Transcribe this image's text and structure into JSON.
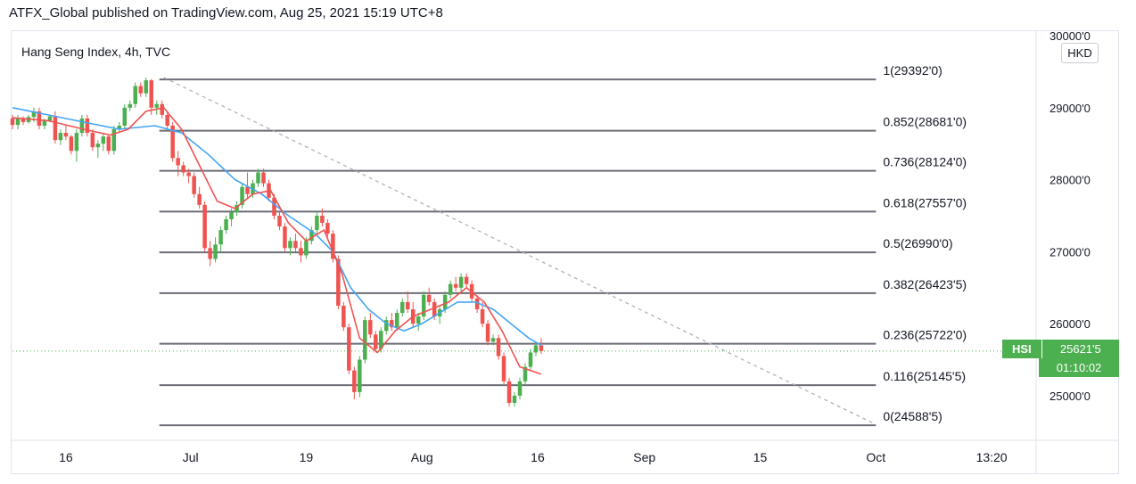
{
  "header": {
    "publisher": "ATFX_Global published on TradingView.com, Aug 25, 2021 15:19 UTC+8"
  },
  "legend": {
    "symbol_info": "Hang Seng Index, 4h, TVC"
  },
  "currency": "HKD",
  "price_tag": {
    "symbol": "HSI",
    "price": "25621'5",
    "countdown": "01:10:02"
  },
  "colors": {
    "up": "#4caf50",
    "down": "#ef5350",
    "ma_fast": "#ef5350",
    "ma_slow": "#42a5f5",
    "fib": "#6b6e76",
    "trend": "#b0b3ba"
  },
  "chart_data": {
    "type": "candlestick",
    "y_axis": {
      "labels": [
        "30000'0",
        "29000'0",
        "28000'0",
        "27000'0",
        "26000'0",
        "25000'0"
      ],
      "values": [
        30000,
        29000,
        28000,
        27000,
        26000,
        25000
      ],
      "range": [
        24380,
        30050
      ]
    },
    "x_axis": {
      "labels": [
        "16",
        "Jul",
        "19",
        "Aug",
        "16",
        "Sep",
        "15",
        "Oct",
        "13:20"
      ],
      "positions": [
        -14,
        0,
        13,
        26,
        39,
        51,
        64,
        77,
        90
      ],
      "range": [
        -20,
        95
      ]
    },
    "fib_levels": [
      {
        "ratio": "1",
        "price": 29392.0,
        "label": "1(29392'0)"
      },
      {
        "ratio": "0.852",
        "price": 28681.0,
        "label": "0.852(28681'0)"
      },
      {
        "ratio": "0.736",
        "price": 28124.0,
        "label": "0.736(28124'0)"
      },
      {
        "ratio": "0.618",
        "price": 27557.0,
        "label": "0.618(27557'0)"
      },
      {
        "ratio": "0.5",
        "price": 26990.0,
        "label": "0.5(26990'0)"
      },
      {
        "ratio": "0.382",
        "price": 26423.5,
        "label": "0.382(26423'5)"
      },
      {
        "ratio": "0.236",
        "price": 25722.0,
        "label": "0.236(25722'0)"
      },
      {
        "ratio": "0.116",
        "price": 25145.5,
        "label": "0.116(25145'5)"
      },
      {
        "ratio": "0",
        "price": 24588.5,
        "label": "0(24588'5)"
      }
    ],
    "fib_x_range": [
      -3.5,
      77
    ],
    "trendline": [
      [
        -3,
        29420
      ],
      [
        77,
        24600
      ]
    ],
    "candles": [
      [
        -20,
        28850,
        28900,
        28700,
        28760
      ],
      [
        -19.4,
        28760,
        28900,
        28700,
        28850
      ],
      [
        -18.8,
        28850,
        28880,
        28760,
        28800
      ],
      [
        -18.2,
        28800,
        28900,
        28780,
        28870
      ],
      [
        -17.6,
        28870,
        29000,
        28800,
        28950
      ],
      [
        -17,
        28950,
        29000,
        28700,
        28750
      ],
      [
        -16.4,
        28750,
        28850,
        28700,
        28820
      ],
      [
        -15.8,
        28820,
        28900,
        28800,
        28880
      ],
      [
        -15.2,
        28880,
        28950,
        28500,
        28550
      ],
      [
        -14.6,
        28550,
        28700,
        28480,
        28650
      ],
      [
        -14,
        28650,
        28750,
        28550,
        28600
      ],
      [
        -13.4,
        28600,
        28620,
        28350,
        28400
      ],
      [
        -12.8,
        28400,
        28700,
        28250,
        28650
      ],
      [
        -12.2,
        28650,
        28900,
        28600,
        28850
      ],
      [
        -11.6,
        28850,
        28900,
        28600,
        28650
      ],
      [
        -11,
        28650,
        28700,
        28400,
        28450
      ],
      [
        -10.4,
        28450,
        28550,
        28300,
        28500
      ],
      [
        -9.8,
        28500,
        28650,
        28400,
        28600
      ],
      [
        -9.2,
        28600,
        28620,
        28350,
        28400
      ],
      [
        -8.6,
        28400,
        28750,
        28350,
        28700
      ],
      [
        -8,
        28700,
        28800,
        28650,
        28750
      ],
      [
        -7.4,
        28750,
        29050,
        28700,
        29000
      ],
      [
        -6.8,
        29000,
        29100,
        28950,
        29050
      ],
      [
        -6.2,
        29050,
        29350,
        29000,
        29300
      ],
      [
        -5.6,
        29300,
        29350,
        29150,
        29200
      ],
      [
        -5,
        29200,
        29420,
        29150,
        29380
      ],
      [
        -4.4,
        29380,
        29400,
        28900,
        29000
      ],
      [
        -3.8,
        29000,
        29100,
        28900,
        29050
      ],
      [
        -3.2,
        29050,
        29100,
        28850,
        28900
      ],
      [
        -2.6,
        28900,
        28950,
        28700,
        28750
      ],
      [
        -2,
        28750,
        28800,
        28250,
        28300
      ],
      [
        -1.4,
        28300,
        28400,
        28050,
        28200
      ],
      [
        -0.8,
        28200,
        28250,
        28050,
        28100
      ],
      [
        -0.2,
        28100,
        28150,
        27950,
        28050
      ],
      [
        0.4,
        28050,
        28100,
        27750,
        27800
      ],
      [
        1,
        27800,
        27900,
        27600,
        27650
      ],
      [
        1.6,
        27650,
        27700,
        27000,
        27050
      ],
      [
        2.2,
        27050,
        27150,
        26800,
        26900
      ],
      [
        2.8,
        26900,
        27200,
        26850,
        27100
      ],
      [
        3.4,
        27100,
        27350,
        27000,
        27300
      ],
      [
        4,
        27300,
        27500,
        27250,
        27450
      ],
      [
        4.6,
        27450,
        27600,
        27350,
        27550
      ],
      [
        5.2,
        27550,
        27700,
        27500,
        27650
      ],
      [
        5.8,
        27650,
        27950,
        27600,
        27900
      ],
      [
        6.4,
        27900,
        28100,
        27750,
        27800
      ],
      [
        7,
        27800,
        28000,
        27750,
        27950
      ],
      [
        7.6,
        27950,
        28150,
        27900,
        28100
      ],
      [
        8.2,
        28100,
        28150,
        27900,
        27950
      ],
      [
        8.8,
        27950,
        28000,
        27700,
        27750
      ],
      [
        9.4,
        27750,
        27800,
        27450,
        27500
      ],
      [
        10,
        27500,
        27550,
        27300,
        27350
      ],
      [
        10.6,
        27350,
        27400,
        27000,
        27050
      ],
      [
        11.2,
        27050,
        27200,
        26950,
        27150
      ],
      [
        11.8,
        27150,
        27250,
        27000,
        27050
      ],
      [
        12.4,
        27050,
        27150,
        26850,
        26950
      ],
      [
        13,
        26950,
        27200,
        26900,
        27150
      ],
      [
        13.6,
        27150,
        27350,
        27100,
        27300
      ],
      [
        14.2,
        27300,
        27550,
        27250,
        27500
      ],
      [
        14.8,
        27500,
        27600,
        27350,
        27400
      ],
      [
        15.4,
        27400,
        27450,
        27200,
        27250
      ],
      [
        16,
        27250,
        27300,
        26850,
        26900
      ],
      [
        16.6,
        26900,
        26950,
        26200,
        26250
      ],
      [
        17.2,
        26250,
        26300,
        25900,
        25950
      ],
      [
        17.8,
        25950,
        26000,
        25300,
        25350
      ],
      [
        18.4,
        25350,
        25400,
        24950,
        25050
      ],
      [
        19,
        25050,
        25550,
        24980,
        25500
      ],
      [
        19.6,
        25500,
        26100,
        25450,
        26050
      ],
      [
        20.2,
        26050,
        26150,
        25800,
        25850
      ],
      [
        20.8,
        25850,
        25900,
        25600,
        25650
      ],
      [
        21.4,
        25650,
        25950,
        25600,
        25900
      ],
      [
        22,
        25900,
        26100,
        25850,
        26050
      ],
      [
        22.6,
        26050,
        26150,
        25900,
        25950
      ],
      [
        23.2,
        25950,
        26200,
        25900,
        26150
      ],
      [
        23.8,
        26150,
        26350,
        26100,
        26300
      ],
      [
        24.4,
        26300,
        26450,
        26150,
        26200
      ],
      [
        25,
        26200,
        26300,
        25950,
        26000
      ],
      [
        25.6,
        26000,
        26150,
        25900,
        26100
      ],
      [
        26.2,
        26100,
        26450,
        26050,
        26400
      ],
      [
        26.8,
        26400,
        26500,
        26250,
        26300
      ],
      [
        27.4,
        26300,
        26350,
        26050,
        26100
      ],
      [
        28,
        26100,
        26250,
        26000,
        26200
      ],
      [
        28.6,
        26200,
        26450,
        26150,
        26400
      ],
      [
        29.2,
        26400,
        26600,
        26350,
        26550
      ],
      [
        29.8,
        26550,
        26650,
        26450,
        26500
      ],
      [
        30.4,
        26500,
        26700,
        26450,
        26650
      ],
      [
        31,
        26650,
        26700,
        26500,
        26550
      ],
      [
        31.6,
        26550,
        26600,
        26300,
        26350
      ],
      [
        32.2,
        26350,
        26400,
        26150,
        26200
      ],
      [
        32.8,
        26200,
        26300,
        25950,
        26000
      ],
      [
        33.4,
        26000,
        26050,
        25700,
        25750
      ],
      [
        34,
        25750,
        25850,
        25700,
        25800
      ],
      [
        34.6,
        25800,
        25850,
        25500,
        25550
      ],
      [
        35.2,
        25550,
        25600,
        25150,
        25200
      ],
      [
        35.8,
        25200,
        25250,
        24850,
        24900
      ],
      [
        36.4,
        24900,
        25050,
        24850,
        25000
      ],
      [
        37,
        25000,
        25250,
        24950,
        25200
      ],
      [
        37.6,
        25200,
        25450,
        25150,
        25400
      ],
      [
        38.2,
        25400,
        25650,
        25350,
        25600
      ],
      [
        38.8,
        25600,
        25750,
        25550,
        25700
      ],
      [
        39.4,
        25700,
        25800,
        25580,
        25620
      ]
    ],
    "ma_fast": [
      [
        -20,
        28860
      ],
      [
        -16,
        28820
      ],
      [
        -12,
        28700
      ],
      [
        -9,
        28620
      ],
      [
        -7,
        28700
      ],
      [
        -5,
        28950
      ],
      [
        -3,
        29000
      ],
      [
        -1,
        28700
      ],
      [
        1,
        28200
      ],
      [
        3,
        27700
      ],
      [
        5,
        27600
      ],
      [
        7,
        27800
      ],
      [
        9,
        27850
      ],
      [
        11,
        27400
      ],
      [
        13,
        27150
      ],
      [
        15,
        27300
      ],
      [
        17,
        26700
      ],
      [
        19,
        25800
      ],
      [
        21,
        25600
      ],
      [
        23,
        25900
      ],
      [
        25,
        26100
      ],
      [
        27,
        26200
      ],
      [
        29,
        26300
      ],
      [
        31,
        26500
      ],
      [
        33,
        26300
      ],
      [
        35,
        25900
      ],
      [
        37,
        25400
      ],
      [
        39.4,
        25300
      ]
    ],
    "ma_slow": [
      [
        -20,
        29000
      ],
      [
        -16,
        28900
      ],
      [
        -12,
        28800
      ],
      [
        -8,
        28700
      ],
      [
        -4,
        28750
      ],
      [
        -1,
        28650
      ],
      [
        2,
        28350
      ],
      [
        5,
        28000
      ],
      [
        8,
        27800
      ],
      [
        11,
        27500
      ],
      [
        14,
        27250
      ],
      [
        16,
        27000
      ],
      [
        18,
        26500
      ],
      [
        20,
        26200
      ],
      [
        22,
        26000
      ],
      [
        24,
        25900
      ],
      [
        26,
        26000
      ],
      [
        28,
        26150
      ],
      [
        30,
        26300
      ],
      [
        32,
        26300
      ],
      [
        34,
        26200
      ],
      [
        36,
        26000
      ],
      [
        38,
        25800
      ],
      [
        39.4,
        25700
      ]
    ]
  }
}
